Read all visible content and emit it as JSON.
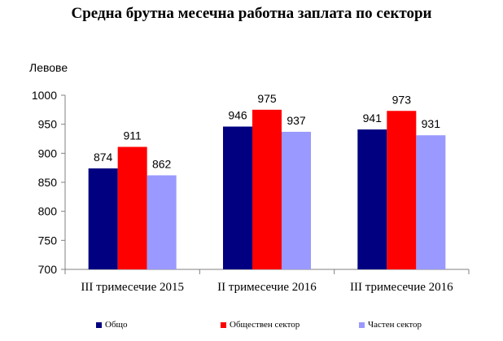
{
  "chart_data": {
    "type": "bar",
    "title": "Средна брутна месечна работна заплата по сектори",
    "ylabel": "Левове",
    "xlabel": "",
    "ylim": [
      700,
      1000
    ],
    "yticks": [
      700,
      750,
      800,
      850,
      900,
      950,
      1000
    ],
    "categories": [
      "III тримесечие 2015",
      "II тримесечие 2016",
      "III тримесечие 2016"
    ],
    "series": [
      {
        "name": "Общо",
        "values": [
          874,
          946,
          941
        ],
        "color": "#000080"
      },
      {
        "name": "Обществен сектор",
        "values": [
          911,
          975,
          973
        ],
        "color": "#ff0000"
      },
      {
        "name": "Частен сектор",
        "values": [
          862,
          937,
          931
        ],
        "color": "#9999ff"
      }
    ],
    "grid": false,
    "legend_position": "bottom"
  }
}
